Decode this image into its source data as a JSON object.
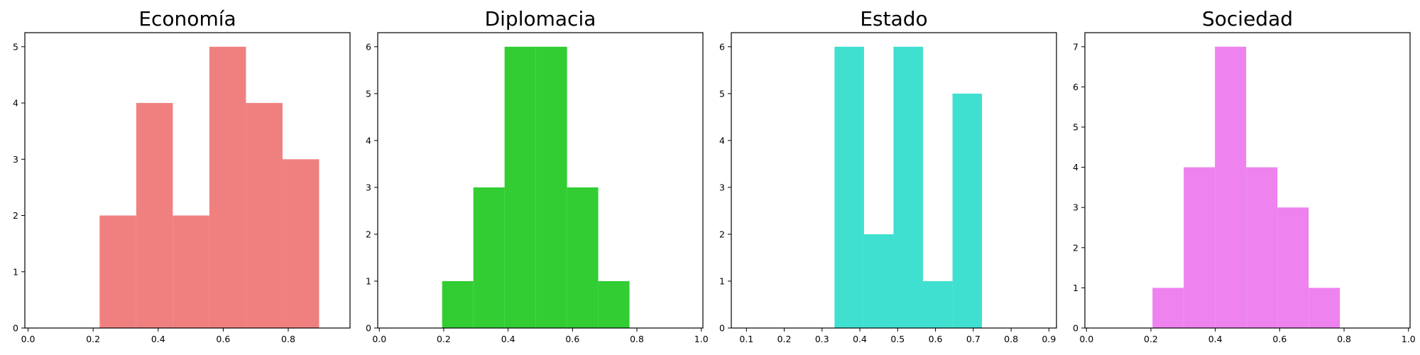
{
  "chart_data": [
    {
      "type": "bar",
      "subtype": "histogram",
      "title": "Economía",
      "color": "#F08080",
      "bins": [
        {
          "x0": 0.22,
          "x1": 0.3325,
          "count": 2
        },
        {
          "x0": 0.3325,
          "x1": 0.445,
          "count": 4
        },
        {
          "x0": 0.445,
          "x1": 0.5575,
          "count": 2
        },
        {
          "x0": 0.5575,
          "x1": 0.67,
          "count": 5
        },
        {
          "x0": 0.67,
          "x1": 0.7825,
          "count": 4
        },
        {
          "x0": 0.7825,
          "x1": 0.895,
          "count": 3
        }
      ],
      "xlim": [
        -0.01,
        0.99
      ],
      "ylim": [
        0,
        5.25
      ],
      "xticks": [
        "0.0",
        "0.2",
        "0.4",
        "0.6",
        "0.8"
      ],
      "yticks": [
        "0",
        "1",
        "2",
        "3",
        "4",
        "5"
      ],
      "grid": false
    },
    {
      "type": "bar",
      "subtype": "histogram",
      "title": "Diplomacia",
      "color": "#32CD32",
      "bins": [
        {
          "x0": 0.195,
          "x1": 0.292,
          "count": 1
        },
        {
          "x0": 0.292,
          "x1": 0.389,
          "count": 3
        },
        {
          "x0": 0.389,
          "x1": 0.486,
          "count": 6
        },
        {
          "x0": 0.486,
          "x1": 0.583,
          "count": 6
        },
        {
          "x0": 0.583,
          "x1": 0.68,
          "count": 3
        },
        {
          "x0": 0.68,
          "x1": 0.777,
          "count": 1
        }
      ],
      "xlim": [
        -0.005,
        1.005
      ],
      "ylim": [
        0,
        6.3
      ],
      "xticks": [
        "0.0",
        "0.2",
        "0.4",
        "0.6",
        "0.8",
        "1.0"
      ],
      "yticks": [
        "0",
        "1",
        "2",
        "3",
        "4",
        "5",
        "6"
      ],
      "grid": false
    },
    {
      "type": "bar",
      "subtype": "histogram",
      "title": "Estado",
      "color": "#40E0D0",
      "bins": [
        {
          "x0": 0.333,
          "x1": 0.411,
          "count": 6
        },
        {
          "x0": 0.411,
          "x1": 0.489,
          "count": 2
        },
        {
          "x0": 0.489,
          "x1": 0.567,
          "count": 6
        },
        {
          "x0": 0.567,
          "x1": 0.645,
          "count": 1
        },
        {
          "x0": 0.645,
          "x1": 0.723,
          "count": 5
        }
      ],
      "xlim": [
        0.06,
        0.92
      ],
      "ylim": [
        0,
        6.3
      ],
      "xticks": [
        "0.1",
        "0.2",
        "0.3",
        "0.4",
        "0.5",
        "0.6",
        "0.7",
        "0.8",
        "0.9"
      ],
      "yticks": [
        "0",
        "1",
        "2",
        "3",
        "4",
        "5",
        "6"
      ],
      "grid": false
    },
    {
      "type": "bar",
      "subtype": "histogram",
      "title": "Sociedad",
      "color": "#EE82EE",
      "bins": [
        {
          "x0": 0.205,
          "x1": 0.302,
          "count": 1
        },
        {
          "x0": 0.302,
          "x1": 0.399,
          "count": 4
        },
        {
          "x0": 0.399,
          "x1": 0.496,
          "count": 7
        },
        {
          "x0": 0.496,
          "x1": 0.593,
          "count": 4
        },
        {
          "x0": 0.593,
          "x1": 0.69,
          "count": 3
        },
        {
          "x0": 0.69,
          "x1": 0.787,
          "count": 1
        }
      ],
      "xlim": [
        -0.005,
        1.005
      ],
      "ylim": [
        0,
        7.35
      ],
      "xticks": [
        "0.0",
        "0.2",
        "0.4",
        "0.6",
        "0.8",
        "1.0"
      ],
      "yticks": [
        "0",
        "1",
        "2",
        "3",
        "4",
        "5",
        "6",
        "7"
      ],
      "grid": false
    }
  ]
}
